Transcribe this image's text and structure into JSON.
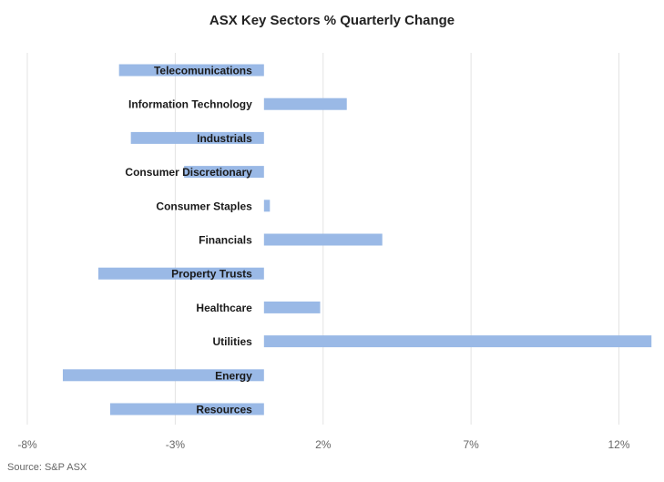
{
  "chart_data": {
    "type": "bar",
    "orientation": "horizontal",
    "title": "ASX Key Sectors % Quarterly Change",
    "categories": [
      "Telecomunications",
      "Information Technology",
      "Industrials",
      "Consumer Discretionary",
      "Consumer Staples",
      "Financials",
      "Property Trusts",
      "Healthcare",
      "Utilities",
      "Energy",
      "Resources"
    ],
    "values": [
      -4.9,
      2.8,
      -4.5,
      -2.7,
      0.2,
      4.0,
      -5.6,
      1.9,
      13.1,
      -6.8,
      -5.2
    ],
    "xlim": [
      -8,
      13
    ],
    "xticks": [
      -8,
      -3,
      2,
      7,
      12
    ],
    "xtick_labels": [
      "-8%",
      "-3%",
      "2%",
      "7%",
      "12%"
    ],
    "xlabel": "",
    "ylabel": "",
    "grid": "vertical",
    "legend": "none",
    "bar_color": "#9ab9e6",
    "grid_color": "#e3e3e3"
  },
  "source_note": "Source: S&P ASX"
}
